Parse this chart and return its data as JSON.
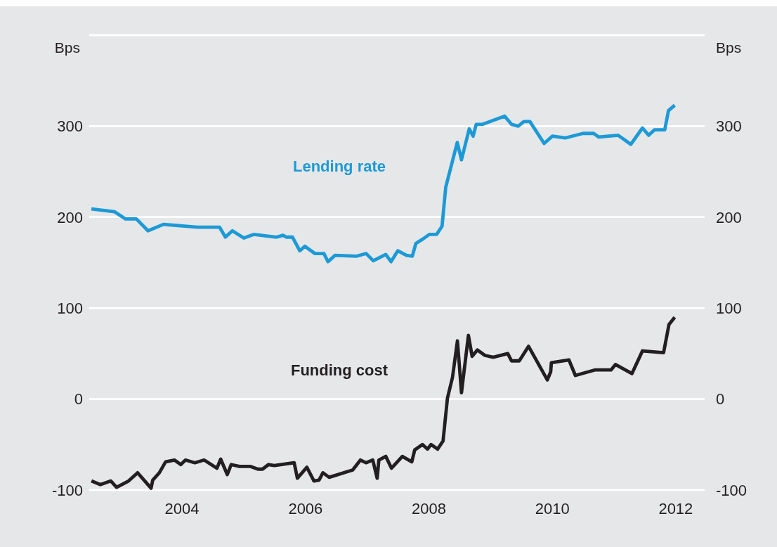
{
  "chart_data": {
    "type": "line",
    "ylabel": "Bps",
    "y2label": "Bps",
    "xlim": [
      "2002-07-01",
      "2012-06-20"
    ],
    "xticks": [
      "2004",
      "2006",
      "2008",
      "2010",
      "2012"
    ],
    "ylim": [
      -100,
      400
    ],
    "yticks": [
      -100,
      0,
      100,
      200,
      300,
      {
        "value": 400,
        "label": null
      }
    ],
    "y2lim": [
      -100,
      400
    ],
    "y2ticks": [
      -100,
      0,
      100,
      200,
      300,
      {
        "value": 400,
        "label": null
      }
    ],
    "grid": "y",
    "series": [
      {
        "name": "Lending rate",
        "color": "#1d9ad6",
        "x": [
          "2002-07-14",
          "2002-11-27",
          "2003-02-01",
          "2003-04-06",
          "2003-06-14",
          "2003-09-13",
          "2004-04-01",
          "2004-08-10",
          "2004-09-14",
          "2004-10-25",
          "2005-01-01",
          "2005-02-28",
          "2005-07-14",
          "2005-08-21",
          "2005-09-09",
          "2005-10-16",
          "2005-11-28",
          "2005-12-28",
          "2006-02-25",
          "2006-04-20",
          "2006-05-14",
          "2006-06-25",
          "2006-10-28",
          "2006-12-26",
          "2007-02-06",
          "2007-04-21",
          "2007-05-22",
          "2007-07-01",
          "2007-08-21",
          "2007-09-25",
          "2007-10-16",
          "2007-11-27",
          "2008-01-04",
          "2008-02-16",
          "2008-03-19",
          "2008-04-10",
          "2008-06-17",
          "2008-07-12",
          "2008-08-27",
          "2008-09-19",
          "2008-10-07",
          "2008-11-14",
          "2009-03-24",
          "2009-05-04",
          "2009-06-13",
          "2009-07-16",
          "2009-08-21",
          "2009-11-13",
          "2010-01-01",
          "2010-03-18",
          "2010-07-01",
          "2010-09-02",
          "2010-10-03",
          "2011-01-25",
          "2011-04-10",
          "2011-06-18",
          "2011-07-25",
          "2011-08-29",
          "2011-10-28",
          "2011-11-19",
          "2011-12-26"
        ],
        "values": [
          209,
          206,
          198,
          198,
          185,
          192,
          189,
          189,
          178,
          185,
          177,
          181,
          178,
          180,
          178,
          178,
          163,
          168,
          160,
          160,
          151,
          158,
          157,
          160,
          152,
          159,
          151,
          163,
          158,
          157,
          171,
          176,
          181,
          181,
          190,
          233,
          282,
          263,
          297,
          289,
          302,
          302,
          311,
          302,
          300,
          305,
          305,
          281,
          289,
          287,
          292,
          292,
          288,
          290,
          280,
          298,
          290,
          296,
          296,
          317,
          323
        ]
      },
      {
        "name": "Funding cost",
        "color": "#231f20",
        "x": [
          "2002-07-14",
          "2002-09-05",
          "2002-11-06",
          "2002-12-10",
          "2003-02-19",
          "2003-04-13",
          "2003-07-02",
          "2003-07-12",
          "2003-08-20",
          "2003-09-26",
          "2003-11-17",
          "2003-12-25",
          "2004-01-22",
          "2004-03-17",
          "2004-05-11",
          "2004-07-26",
          "2004-08-17",
          "2004-09-25",
          "2004-10-18",
          "2004-12-06",
          "2005-02-07",
          "2005-03-25",
          "2005-04-22",
          "2005-05-27",
          "2005-07-01",
          "2005-10-26",
          "2005-11-14",
          "2006-01-09",
          "2006-02-20",
          "2006-03-22",
          "2006-04-14",
          "2006-05-21",
          "2006-10-07",
          "2006-11-22",
          "2006-12-25",
          "2007-02-03",
          "2007-03-01",
          "2007-03-11",
          "2007-04-21",
          "2007-05-25",
          "2007-07-28",
          "2007-09-22",
          "2007-10-09",
          "2007-11-24",
          "2007-12-24",
          "2008-01-14",
          "2008-02-22",
          "2008-03-25",
          "2008-04-20",
          "2008-05-20",
          "2008-06-18",
          "2008-07-12",
          "2008-08-22",
          "2008-09-13",
          "2008-10-14",
          "2008-11-28",
          "2009-01-16",
          "2009-04-12",
          "2009-05-04",
          "2009-06-19",
          "2009-08-13",
          "2009-12-02",
          "2009-12-22",
          "2009-12-26",
          "2010-04-09",
          "2010-05-17",
          "2010-09-09",
          "2010-12-14",
          "2011-01-09",
          "2011-04-17",
          "2011-06-18",
          "2011-10-21",
          "2011-11-22",
          "2011-12-26"
        ],
        "values": [
          -90,
          -94,
          -90,
          -97,
          -90,
          -81,
          -98,
          -89,
          -81,
          -69,
          -67,
          -72,
          -67,
          -70,
          -67,
          -76,
          -66,
          -83,
          -72,
          -74,
          -74,
          -77,
          -77,
          -72,
          -73,
          -70,
          -87,
          -75,
          -90,
          -89,
          -81,
          -86,
          -78,
          -67,
          -70,
          -67,
          -87,
          -67,
          -63,
          -76,
          -63,
          -69,
          -56,
          -50,
          -55,
          -50,
          -55,
          -46,
          1,
          24,
          64,
          7,
          70,
          47,
          54,
          48,
          46,
          50,
          42,
          42,
          58,
          21,
          30,
          40,
          43,
          26,
          32,
          32,
          38,
          28,
          53,
          51,
          82,
          90
        ]
      }
    ]
  }
}
